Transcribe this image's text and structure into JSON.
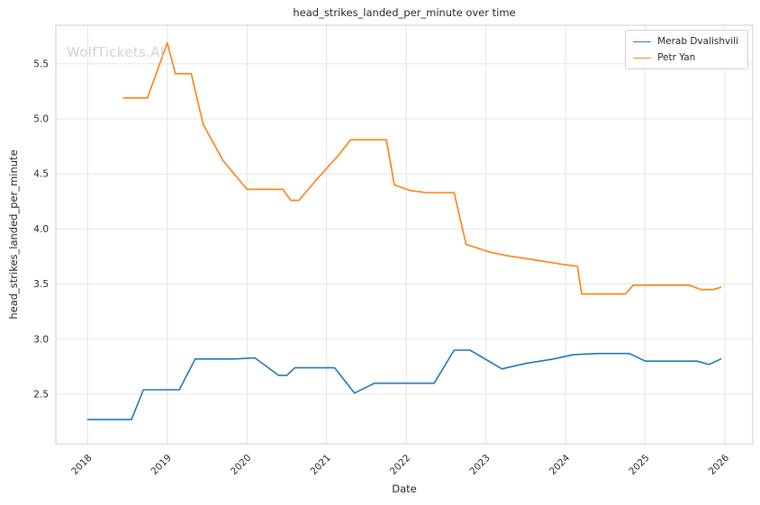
{
  "watermark": "WolfTickets.AI",
  "chart_data": {
    "type": "line",
    "title": "head_strikes_landed_per_minute over time",
    "xlabel": "Date",
    "ylabel": "head_strikes_landed_per_minute",
    "xlim": [
      2017.6,
      2026.35
    ],
    "ylim": [
      2.05,
      5.85
    ],
    "xticks": [
      2018,
      2019,
      2020,
      2021,
      2022,
      2023,
      2024,
      2025,
      2026
    ],
    "yticks": [
      2.5,
      3.0,
      3.5,
      4.0,
      4.5,
      5.0,
      5.5
    ],
    "grid": true,
    "grid_color": "#e3e3e3",
    "spine_color": "#d5d5d5",
    "legend_position": "upper right",
    "series": [
      {
        "name": "Merab Dvalishvili",
        "color": "#1f77b4",
        "points": [
          [
            2018.0,
            2.27
          ],
          [
            2018.3,
            2.27
          ],
          [
            2018.55,
            2.27
          ],
          [
            2018.7,
            2.54
          ],
          [
            2018.95,
            2.54
          ],
          [
            2019.15,
            2.54
          ],
          [
            2019.35,
            2.82
          ],
          [
            2019.6,
            2.82
          ],
          [
            2019.85,
            2.82
          ],
          [
            2020.1,
            2.83
          ],
          [
            2020.4,
            2.67
          ],
          [
            2020.5,
            2.67
          ],
          [
            2020.6,
            2.74
          ],
          [
            2020.85,
            2.74
          ],
          [
            2021.1,
            2.74
          ],
          [
            2021.35,
            2.51
          ],
          [
            2021.6,
            2.6
          ],
          [
            2021.9,
            2.6
          ],
          [
            2022.1,
            2.6
          ],
          [
            2022.35,
            2.6
          ],
          [
            2022.6,
            2.9
          ],
          [
            2022.8,
            2.9
          ],
          [
            2023.2,
            2.73
          ],
          [
            2023.5,
            2.78
          ],
          [
            2023.85,
            2.82
          ],
          [
            2024.1,
            2.86
          ],
          [
            2024.4,
            2.87
          ],
          [
            2024.8,
            2.87
          ],
          [
            2025.0,
            2.8
          ],
          [
            2025.35,
            2.8
          ],
          [
            2025.65,
            2.8
          ],
          [
            2025.8,
            2.77
          ],
          [
            2025.95,
            2.82
          ]
        ]
      },
      {
        "name": "Petr Yan",
        "color": "#ff7f0e",
        "points": [
          [
            2018.45,
            5.19
          ],
          [
            2018.6,
            5.19
          ],
          [
            2018.75,
            5.19
          ],
          [
            2019.0,
            5.69
          ],
          [
            2019.1,
            5.41
          ],
          [
            2019.3,
            5.41
          ],
          [
            2019.45,
            4.95
          ],
          [
            2019.7,
            4.62
          ],
          [
            2020.0,
            4.36
          ],
          [
            2020.25,
            4.36
          ],
          [
            2020.45,
            4.36
          ],
          [
            2020.55,
            4.26
          ],
          [
            2020.65,
            4.26
          ],
          [
            2020.9,
            4.47
          ],
          [
            2021.15,
            4.67
          ],
          [
            2021.3,
            4.81
          ],
          [
            2021.55,
            4.81
          ],
          [
            2021.75,
            4.81
          ],
          [
            2021.85,
            4.4
          ],
          [
            2022.05,
            4.35
          ],
          [
            2022.25,
            4.33
          ],
          [
            2022.6,
            4.33
          ],
          [
            2022.75,
            3.86
          ],
          [
            2023.05,
            3.79
          ],
          [
            2023.25,
            3.76
          ],
          [
            2023.6,
            3.72
          ],
          [
            2023.95,
            3.68
          ],
          [
            2024.15,
            3.66
          ],
          [
            2024.2,
            3.41
          ],
          [
            2024.5,
            3.41
          ],
          [
            2024.75,
            3.41
          ],
          [
            2024.85,
            3.49
          ],
          [
            2025.15,
            3.49
          ],
          [
            2025.55,
            3.49
          ],
          [
            2025.7,
            3.45
          ],
          [
            2025.85,
            3.45
          ],
          [
            2025.95,
            3.47
          ]
        ]
      }
    ]
  }
}
